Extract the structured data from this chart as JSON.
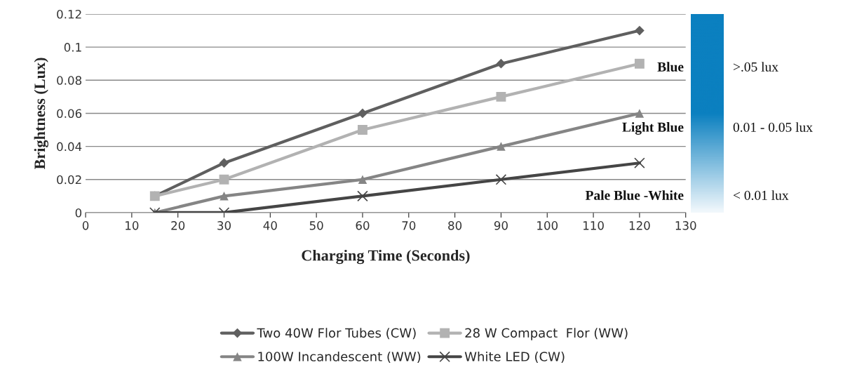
{
  "chart_data": {
    "type": "line",
    "xlabel": "Charging Time (Seconds)",
    "ylabel": "Brightness (Lux)",
    "x": [
      15,
      30,
      60,
      90,
      120
    ],
    "series": [
      {
        "name": "Two 40W Flor Tubes (CW)",
        "color": "#5f5f5f",
        "marker": "diamond",
        "values": [
          0.01,
          0.03,
          0.06,
          0.09,
          0.11
        ]
      },
      {
        "name": "28 W Compact  Flor (WW)",
        "color": "#b2b2b2",
        "marker": "square",
        "values": [
          0.01,
          0.02,
          0.05,
          0.07,
          0.09
        ]
      },
      {
        "name": "100W Incandescent (WW)",
        "color": "#858585",
        "marker": "triangle",
        "values": [
          0,
          0.01,
          0.02,
          0.04,
          0.06
        ]
      },
      {
        "name": "White LED (CW)",
        "color": "#454545",
        "marker": "cross",
        "values": [
          0,
          0,
          0.01,
          0.02,
          0.03
        ]
      }
    ],
    "xlim": [
      0,
      130
    ],
    "xticks": [
      0,
      10,
      20,
      30,
      40,
      50,
      60,
      70,
      80,
      90,
      100,
      110,
      120,
      130
    ],
    "ylim": [
      0,
      0.12
    ],
    "yticks": [
      0,
      0.02,
      0.04,
      0.06,
      0.08,
      0.1,
      0.12
    ],
    "grid": "y",
    "legend": "bottom",
    "annotations": [
      "Blue",
      "Light Blue",
      "Pale Blue -White",
      ">.05 lux",
      "0.01 - 0.05 lux",
      "< 0.01 lux"
    ]
  }
}
